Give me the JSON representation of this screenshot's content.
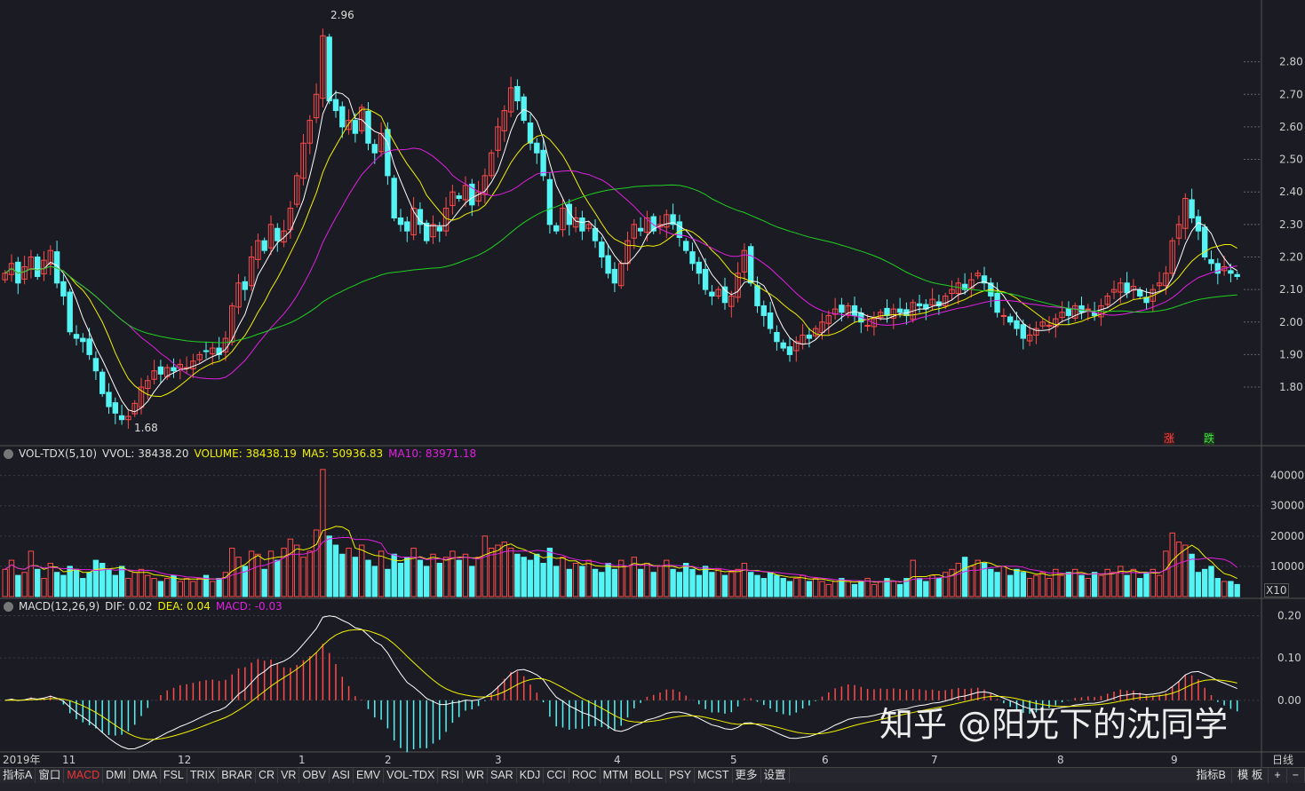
{
  "headers": {
    "vol": {
      "name": "VOL-TDX(5,10)",
      "vvol": "VVOL: 38438.20",
      "volume": "VOLUME: 38438.19",
      "ma5": "MA5: 50936.83",
      "ma10": "MA10: 83971.18"
    },
    "macd": {
      "name": "MACD(12,26,9)",
      "dif": "DIF: 0.02",
      "dea": "DEA: 0.04",
      "macd": "MACD: -0.03"
    }
  },
  "markers": {
    "high": "2.96",
    "low": "1.68",
    "zhang": "涨",
    "die": "跌",
    "x10": "X10"
  },
  "time_axis": {
    "year": "2019年",
    "months": [
      "11",
      "12",
      "1",
      "2",
      "3",
      "4",
      "5",
      "6",
      "7",
      "8",
      "9"
    ],
    "period": "日线"
  },
  "tabs": [
    "指标A",
    "窗口",
    "MACD",
    "DMI",
    "DMA",
    "FSL",
    "TRIX",
    "BRAR",
    "CR",
    "VR",
    "OBV",
    "ASI",
    "EMV",
    "VOL-TDX",
    "RSI",
    "WR",
    "SAR",
    "KDJ",
    "CCI",
    "ROC",
    "MTM",
    "BOLL",
    "PSY",
    "MCST",
    "更多",
    "设置"
  ],
  "active_tab": "MACD",
  "right_tabs": [
    "指标B",
    "模 板",
    "+",
    "−"
  ],
  "watermark": "知乎 @阳光下的沈同学",
  "colors": {
    "up": "#ff4a4a",
    "down": "#54f4f4",
    "ma5": "#ffffff",
    "ma10": "#f0f000",
    "ma20": "#e020e0",
    "ma60": "#20d020",
    "bg": "#1b1c23"
  },
  "chart_data": {
    "type": "candlestick",
    "price_axis": {
      "ticks": [
        2.8,
        2.7,
        2.6,
        2.5,
        2.4,
        2.3,
        2.2,
        2.1,
        2.0,
        1.9,
        1.8
      ],
      "ylim": [
        1.62,
        2.99
      ]
    },
    "vol_axis": {
      "ticks": [
        40000,
        30000,
        20000,
        10000
      ],
      "ylim": [
        0,
        44000
      ]
    },
    "macd_axis": {
      "ticks": [
        0.2,
        0.1,
        0.0
      ],
      "ylim": [
        -0.12,
        0.22
      ]
    },
    "ma_periods": [
      5,
      10,
      20,
      60
    ],
    "closes": [
      2.15,
      2.18,
      2.12,
      2.17,
      2.2,
      2.14,
      2.19,
      2.22,
      2.12,
      2.08,
      1.97,
      1.95,
      1.94,
      1.9,
      1.85,
      1.78,
      1.74,
      1.72,
      1.7,
      1.71,
      1.75,
      1.8,
      1.82,
      1.85,
      1.84,
      1.86,
      1.85,
      1.87,
      1.86,
      1.88,
      1.9,
      1.91,
      1.92,
      1.9,
      1.95,
      2.05,
      2.12,
      2.1,
      2.2,
      2.25,
      2.22,
      2.3,
      2.25,
      2.28,
      2.35,
      2.45,
      2.55,
      2.62,
      2.7,
      2.88,
      2.68,
      2.65,
      2.6,
      2.62,
      2.58,
      2.66,
      2.55,
      2.52,
      2.58,
      2.45,
      2.32,
      2.3,
      2.28,
      2.35,
      2.3,
      2.25,
      2.3,
      2.28,
      2.35,
      2.4,
      2.38,
      2.42,
      2.36,
      2.4,
      2.45,
      2.52,
      2.6,
      2.65,
      2.72,
      2.68,
      2.62,
      2.55,
      2.52,
      2.45,
      2.3,
      2.28,
      2.35,
      2.3,
      2.32,
      2.28,
      2.3,
      2.25,
      2.2,
      2.15,
      2.12,
      2.18,
      2.25,
      2.3,
      2.28,
      2.32,
      2.28,
      2.3,
      2.33,
      2.3,
      2.26,
      2.22,
      2.18,
      2.15,
      2.1,
      2.08,
      2.1,
      2.06,
      2.08,
      2.15,
      2.22,
      2.12,
      2.05,
      2.02,
      1.98,
      1.94,
      1.92,
      1.9,
      1.94,
      1.96,
      1.95,
      1.98,
      2.0,
      2.02,
      2.04,
      2.03,
      2.05,
      2.02,
      2.0,
      1.99,
      2.01,
      2.03,
      2.02,
      2.04,
      2.03,
      2.02,
      2.06,
      2.05,
      2.04,
      2.07,
      2.05,
      2.08,
      2.1,
      2.12,
      2.1,
      2.13,
      2.15,
      2.12,
      2.08,
      2.03,
      2.02,
      2.0,
      1.98,
      1.95,
      1.96,
      1.98,
      2.0,
      1.99,
      2.01,
      2.03,
      2.02,
      2.05,
      2.03,
      2.04,
      2.02,
      2.05,
      2.08,
      2.1,
      2.12,
      2.09,
      2.11,
      2.08,
      2.06,
      2.1,
      2.12,
      2.15,
      2.25,
      2.3,
      2.38,
      2.32,
      2.28,
      2.2,
      2.18,
      2.15,
      2.17,
      2.15,
      2.14
    ],
    "volumes": [
      9000,
      12000,
      7000,
      8000,
      15000,
      9000,
      6000,
      11000,
      8000,
      7000,
      10000,
      9000,
      6000,
      8000,
      12000,
      11000,
      9000,
      7000,
      10000,
      6000,
      8000,
      9000,
      7000,
      6000,
      5000,
      6000,
      7000,
      5000,
      6000,
      5000,
      6000,
      7000,
      5000,
      6000,
      8000,
      16000,
      13000,
      10000,
      15000,
      14000,
      9000,
      15000,
      12000,
      16000,
      19000,
      17000,
      13000,
      15000,
      22000,
      42000,
      20000,
      17000,
      14000,
      16000,
      13000,
      17000,
      12000,
      10000,
      15000,
      9000,
      14000,
      11000,
      13000,
      16000,
      12000,
      10000,
      14000,
      11000,
      13000,
      15000,
      12000,
      14000,
      10000,
      13000,
      20000,
      16000,
      17000,
      18000,
      16000,
      14000,
      13000,
      12000,
      14000,
      11000,
      16000,
      10000,
      13000,
      9000,
      11000,
      10000,
      12000,
      9000,
      8000,
      11000,
      9000,
      12000,
      10000,
      13000,
      9000,
      11000,
      8000,
      10000,
      12000,
      9000,
      8000,
      11000,
      9000,
      7000,
      10000,
      8000,
      9000,
      7000,
      8000,
      9000,
      11000,
      8000,
      7000,
      6000,
      8000,
      7000,
      6000,
      5000,
      6000,
      7000,
      5000,
      6000,
      5000,
      4000,
      5000,
      6000,
      5000,
      4000,
      5000,
      6000,
      4000,
      5000,
      6000,
      5000,
      4000,
      6000,
      12000,
      6000,
      5000,
      7000,
      6000,
      8000,
      9000,
      11000,
      13000,
      10000,
      12000,
      11000,
      9000,
      8000,
      10000,
      7000,
      9000,
      8000,
      6000,
      7000,
      8000,
      6000,
      9000,
      7000,
      8000,
      9000,
      7000,
      6000,
      8000,
      7000,
      9000,
      8000,
      10000,
      7000,
      9000,
      6000,
      8000,
      9000,
      7000,
      15000,
      21000,
      18000,
      17000,
      14000,
      8000,
      9000,
      10000,
      6000,
      5000,
      5000,
      4000
    ]
  }
}
